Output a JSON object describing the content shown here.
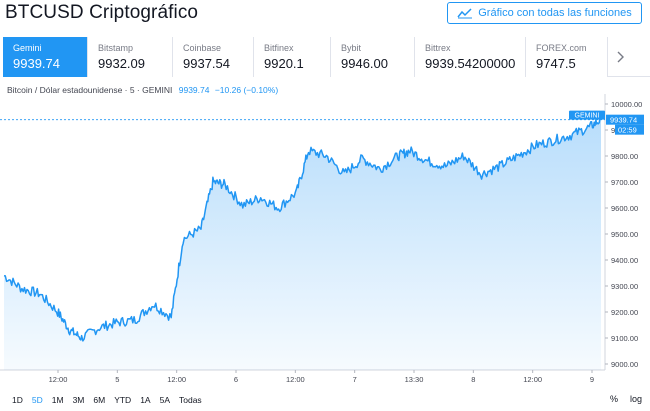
{
  "header": {
    "title": "BTCUSD Criptográfico",
    "full_chart_label": "Gráfico con todas las funciones"
  },
  "exchanges": [
    {
      "name": "Gemini",
      "price": "9939.74",
      "active": true
    },
    {
      "name": "Bitstamp",
      "price": "9932.09",
      "active": false
    },
    {
      "name": "Coinbase",
      "price": "9937.54",
      "active": false
    },
    {
      "name": "Bitfinex",
      "price": "9920.1",
      "active": false
    },
    {
      "name": "Bybit",
      "price": "9946.00",
      "active": false
    },
    {
      "name": "Bittrex",
      "price": "9939.54200000",
      "active": false
    },
    {
      "name": "FOREX.com",
      "price": "9747.5",
      "active": false
    }
  ],
  "legend": {
    "symbol": "Bitcoin / Dólar estadounidense · 5 · GEMINI",
    "price": "9939.74",
    "change": "−10.26 (−0.10%)"
  },
  "chart_data": {
    "type": "area",
    "series": [
      {
        "name": "GEMINI"
      }
    ],
    "ylim": [
      9000,
      10000
    ],
    "yticks": [
      "9000.00",
      "9100.00",
      "9200.00",
      "9300.00",
      "9400.00",
      "9500.00",
      "9600.00",
      "9700.00",
      "9800.00",
      "9900.00",
      "10000.00"
    ],
    "xtick_labels": [
      "12:00",
      "5",
      "12:00",
      "6",
      "12:00",
      "7",
      "13:30",
      "8",
      "12:00",
      "9"
    ],
    "last_price_label": "9939.74",
    "last_price_tag": "GEMINI",
    "countdown": "02:59",
    "points": [
      [
        0,
        9340
      ],
      [
        0.03,
        9290
      ],
      [
        0.06,
        9270
      ],
      [
        0.09,
        9200
      ],
      [
        0.11,
        9130
      ],
      [
        0.13,
        9100
      ],
      [
        0.16,
        9140
      ],
      [
        0.19,
        9160
      ],
      [
        0.22,
        9170
      ],
      [
        0.25,
        9230
      ],
      [
        0.28,
        9180
      ],
      [
        0.3,
        9480
      ],
      [
        0.33,
        9520
      ],
      [
        0.35,
        9700
      ],
      [
        0.37,
        9690
      ],
      [
        0.4,
        9610
      ],
      [
        0.43,
        9640
      ],
      [
        0.46,
        9600
      ],
      [
        0.49,
        9660
      ],
      [
        0.51,
        9820
      ],
      [
        0.54,
        9800
      ],
      [
        0.57,
        9730
      ],
      [
        0.6,
        9790
      ],
      [
        0.63,
        9750
      ],
      [
        0.66,
        9800
      ],
      [
        0.68,
        9820
      ],
      [
        0.71,
        9780
      ],
      [
        0.74,
        9760
      ],
      [
        0.77,
        9800
      ],
      [
        0.8,
        9730
      ],
      [
        0.83,
        9760
      ],
      [
        0.86,
        9800
      ],
      [
        0.89,
        9840
      ],
      [
        0.92,
        9860
      ],
      [
        0.95,
        9880
      ],
      [
        0.98,
        9910
      ],
      [
        1.0,
        9940
      ]
    ]
  },
  "range_buttons": [
    "1D",
    "5D",
    "1M",
    "3M",
    "6M",
    "YTD",
    "1A",
    "5A",
    "Todas"
  ],
  "active_range": "5D",
  "scale_buttons": {
    "percent": "%",
    "log": "log"
  }
}
